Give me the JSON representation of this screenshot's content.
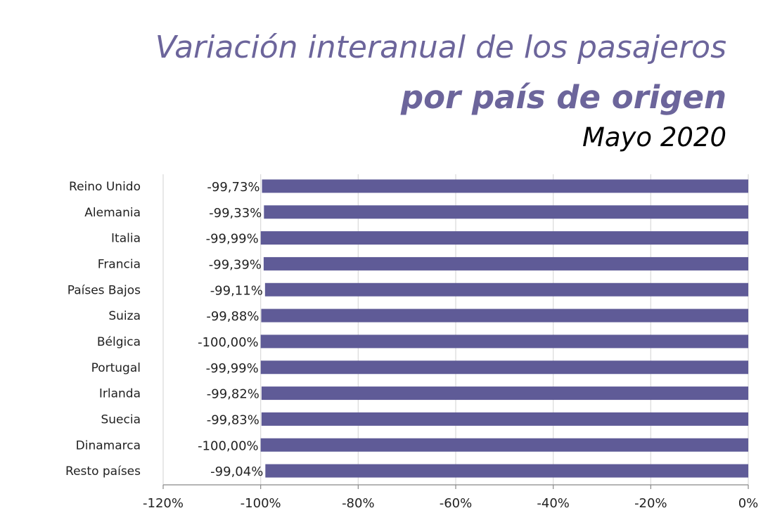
{
  "chart_data": {
    "type": "bar",
    "orientation": "horizontal",
    "title": "Variación interanual de los pasajeros",
    "subtitle": "por país de origen",
    "period": "Mayo 2020",
    "categories": [
      "Reino Unido",
      "Alemania",
      "Italia",
      "Francia",
      "Países Bajos",
      "Suiza",
      "Bélgica",
      "Portugal",
      "Irlanda",
      "Suecia",
      "Dinamarca",
      "Resto países"
    ],
    "values": [
      -99.73,
      -99.33,
      -99.99,
      -99.39,
      -99.11,
      -99.88,
      -100.0,
      -99.99,
      -99.82,
      -99.83,
      -100.0,
      -99.04
    ],
    "data_labels": [
      "-99,73%",
      "-99,33%",
      "-99,99%",
      "-99,39%",
      "-99,11%",
      "-99,88%",
      "-100,00%",
      "-99,99%",
      "-99,82%",
      "-99,83%",
      "-100,00%",
      "-99,04%"
    ],
    "xlim": [
      -120,
      0
    ],
    "x_ticks": [
      -120,
      -100,
      -80,
      -60,
      -40,
      -20,
      0
    ],
    "x_tick_labels": [
      "-120%",
      "-100%",
      "-80%",
      "-60%",
      "-40%",
      "-20%",
      "0%"
    ],
    "grid": "vertical",
    "bar_color": "#5f5b97",
    "title_color": "#6c659b"
  }
}
